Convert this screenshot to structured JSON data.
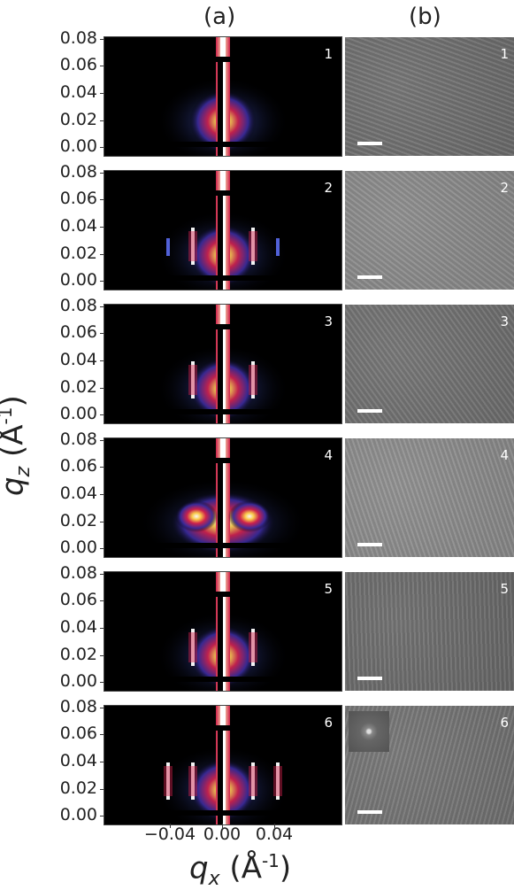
{
  "headers": {
    "a": "(a)",
    "b": "(b)"
  },
  "y_ticks": [
    "0.08",
    "0.06",
    "0.04",
    "0.02",
    "0.00"
  ],
  "x_ticks": [
    "−0.04",
    "0.00",
    "0.04"
  ],
  "y_axis": {
    "symbol": "q",
    "sub": "z",
    "unit_open": " (Å",
    "unit_exp": "-1",
    "unit_close": ")"
  },
  "x_axis": {
    "symbol": "q",
    "sub": "x",
    "unit_open": " (Å",
    "unit_exp": "-1",
    "unit_close": ")"
  },
  "panels": [
    {
      "label": "1",
      "pattern": "diffuse",
      "sem_tone": "#6e6e6e"
    },
    {
      "label": "2",
      "pattern": "side-peaks",
      "sem_tone": "#8a8a8a"
    },
    {
      "label": "3",
      "pattern": "side-peaks",
      "sem_tone": "#707070"
    },
    {
      "label": "4",
      "pattern": "lobes",
      "sem_tone": "#8c8c8c"
    },
    {
      "label": "5",
      "pattern": "side-peaks",
      "sem_tone": "#6a6a6a"
    },
    {
      "label": "6",
      "pattern": "multi-peaks",
      "sem_tone": "#737373",
      "fft_inset": true
    }
  ]
}
